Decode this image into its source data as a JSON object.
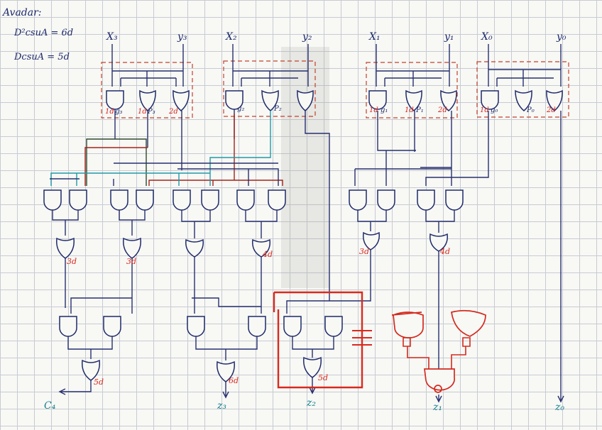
{
  "notes": {
    "heading": "Avadar:",
    "line1": "D²csuA = 6d",
    "line2": "DcsuA = 5d"
  },
  "inputs": {
    "x3": "X₃",
    "y3": "y₃",
    "x2": "X₂",
    "y2": "y₂",
    "x1": "X₁",
    "y1": "y₁",
    "x0": "X₀",
    "y0": "y₀"
  },
  "gate_labels": {
    "b3_1d": "1d",
    "b3_g": "g₃",
    "b3_1d2": "1d",
    "b3_p": "P₃",
    "b3_2d": "2d",
    "b2_g": "g₂",
    "b2_p": "P₂",
    "b1_1d": "1d",
    "b1_g": "g₁",
    "b1_1d2": "1d",
    "b1_p": "P₁",
    "b1_2d": "2d",
    "b0_1d": "1d",
    "b0_g": "g₀",
    "b0_p": "P₀",
    "b0_2d": "2d"
  },
  "delays": {
    "or_a": "3d",
    "or_b": "3d",
    "or_c": "4d",
    "or_d": "3d",
    "or_e": "4d",
    "out_c4": "5d",
    "out_z3": "6d",
    "out_z2": "5d"
  },
  "outputs": {
    "c4": "C₄",
    "z3": "z₃",
    "z2": "z₂",
    "z1": "z₁",
    "z0": "z₀"
  },
  "colors": {
    "ink_blue": "#1d2a6b",
    "ink_red": "#d6261c",
    "ink_teal": "#15808f",
    "grid": "#c7cbd2"
  }
}
